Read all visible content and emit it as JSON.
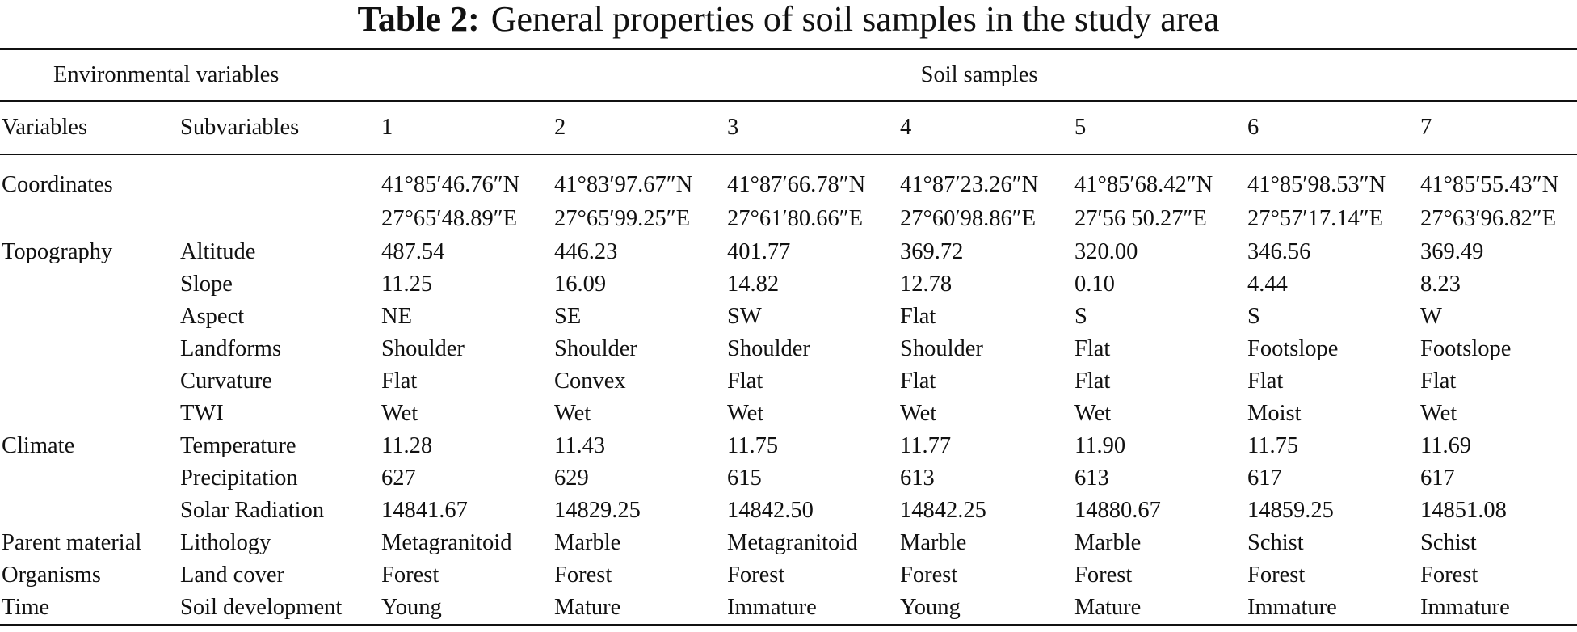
{
  "caption": {
    "label": "Table 2:",
    "text": "General properties of soil samples in the study area"
  },
  "header": {
    "environmental_variables": "Environmental variables",
    "soil_samples": "Soil samples",
    "variables": "Variables",
    "subvariables": "Subvariables",
    "samples": [
      "1",
      "2",
      "3",
      "4",
      "5",
      "6",
      "7"
    ]
  },
  "coordinates": {
    "label": "Coordinates",
    "north": [
      "41°85′46.76″N",
      "41°83′97.67″N",
      "41°87′66.78″N",
      "41°87′23.26″N",
      "41°85′68.42″N",
      "41°85′98.53″N",
      "41°85′55.43″N"
    ],
    "east": [
      "27°65′48.89″E",
      "27°65′99.25″E",
      "27°61′80.66″E",
      "27°60′98.86″E",
      "27′56 50.27″E",
      "27°57′17.14″E",
      "27°63′96.82″E"
    ]
  },
  "rows": [
    {
      "variable": "Topography",
      "subvariable": "Altitude",
      "values": [
        "487.54",
        "446.23",
        "401.77",
        "369.72",
        "320.00",
        "346.56",
        "369.49"
      ]
    },
    {
      "variable": "",
      "subvariable": "Slope",
      "values": [
        "11.25",
        "16.09",
        "14.82",
        "12.78",
        "0.10",
        "4.44",
        "8.23"
      ]
    },
    {
      "variable": "",
      "subvariable": "Aspect",
      "values": [
        "NE",
        "SE",
        "SW",
        "Flat",
        "S",
        "S",
        "W"
      ]
    },
    {
      "variable": "",
      "subvariable": "Landforms",
      "values": [
        "Shoulder",
        "Shoulder",
        "Shoulder",
        "Shoulder",
        "Flat",
        "Footslope",
        "Footslope"
      ]
    },
    {
      "variable": "",
      "subvariable": "Curvature",
      "values": [
        "Flat",
        "Convex",
        "Flat",
        "Flat",
        "Flat",
        "Flat",
        "Flat"
      ]
    },
    {
      "variable": "",
      "subvariable": "TWI",
      "values": [
        "Wet",
        "Wet",
        "Wet",
        "Wet",
        "Wet",
        "Moist",
        "Wet"
      ]
    },
    {
      "variable": "Climate",
      "subvariable": "Temperature",
      "values": [
        "11.28",
        "11.43",
        "11.75",
        "11.77",
        "11.90",
        "11.75",
        "11.69"
      ]
    },
    {
      "variable": "",
      "subvariable": "Precipitation",
      "values": [
        "627",
        "629",
        "615",
        "613",
        "613",
        "617",
        "617"
      ]
    },
    {
      "variable": "",
      "subvariable": "Solar Radiation",
      "values": [
        "14841.67",
        "14829.25",
        "14842.50",
        "14842.25",
        "14880.67",
        "14859.25",
        "14851.08"
      ]
    },
    {
      "variable": "Parent material",
      "subvariable": "Lithology",
      "values": [
        "Metagranitoid",
        "Marble",
        "Metagranitoid",
        "Marble",
        "Marble",
        "Schist",
        "Schist"
      ]
    },
    {
      "variable": "Organisms",
      "subvariable": "Land cover",
      "values": [
        "Forest",
        "Forest",
        "Forest",
        "Forest",
        "Forest",
        "Forest",
        "Forest"
      ]
    },
    {
      "variable": "Time",
      "subvariable": "Soil development",
      "values": [
        "Young",
        "Mature",
        "Immature",
        "Young",
        "Mature",
        "Immature",
        "Immature"
      ]
    }
  ]
}
